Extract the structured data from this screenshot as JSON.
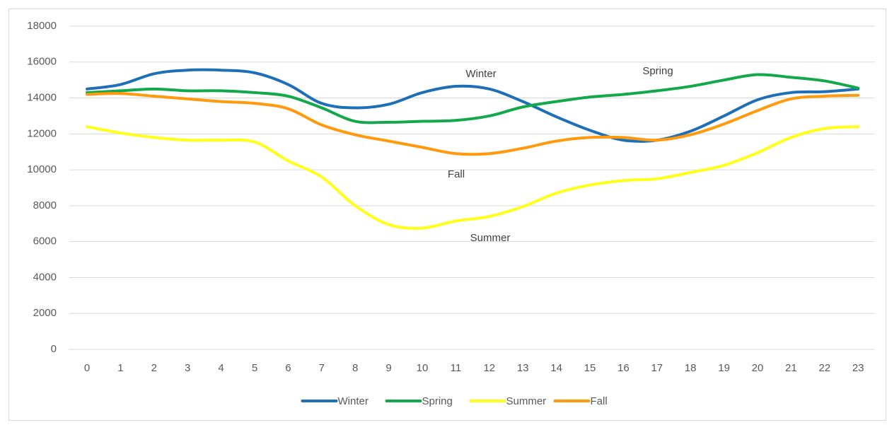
{
  "chart_data": {
    "type": "line",
    "categories": [
      0,
      1,
      2,
      3,
      4,
      5,
      6,
      7,
      8,
      9,
      10,
      11,
      12,
      13,
      14,
      15,
      16,
      17,
      18,
      19,
      20,
      21,
      22,
      23
    ],
    "series": [
      {
        "name": "Winter",
        "color": "#1f6fb6",
        "values": [
          14500,
          14750,
          15350,
          15550,
          15550,
          15400,
          14750,
          13700,
          13450,
          13650,
          14300,
          14650,
          14500,
          13800,
          12950,
          12200,
          11650,
          11650,
          12150,
          13000,
          13900,
          14300,
          14350,
          14500
        ]
      },
      {
        "name": "Spring",
        "color": "#13a84a",
        "values": [
          14300,
          14400,
          14500,
          14400,
          14400,
          14300,
          14100,
          13450,
          12700,
          12650,
          12700,
          12750,
          13000,
          13500,
          13800,
          14050,
          14200,
          14400,
          14650,
          15000,
          15300,
          15150,
          14950,
          14550
        ]
      },
      {
        "name": "Summer",
        "color": "#ffff1a",
        "values": [
          12400,
          12050,
          11800,
          11650,
          11650,
          11550,
          10500,
          9600,
          8000,
          6950,
          6750,
          7150,
          7400,
          7950,
          8700,
          9150,
          9400,
          9500,
          9850,
          10250,
          10950,
          11800,
          12300,
          12400
        ]
      },
      {
        "name": "Fall",
        "color": "#ff9a0e",
        "values": [
          14200,
          14250,
          14100,
          13950,
          13800,
          13700,
          13400,
          12500,
          11950,
          11600,
          11250,
          10900,
          10900,
          11200,
          11600,
          11800,
          11800,
          11650,
          11950,
          12550,
          13300,
          13950,
          14100,
          14150
        ]
      }
    ],
    "annotations": [
      "Winter",
      "Spring",
      "Fall",
      "Summer"
    ],
    "ylim": [
      0,
      18000
    ],
    "yticks": [
      0,
      2000,
      4000,
      6000,
      8000,
      10000,
      12000,
      14000,
      16000,
      18000
    ],
    "grid": true,
    "legend": "bottom"
  }
}
